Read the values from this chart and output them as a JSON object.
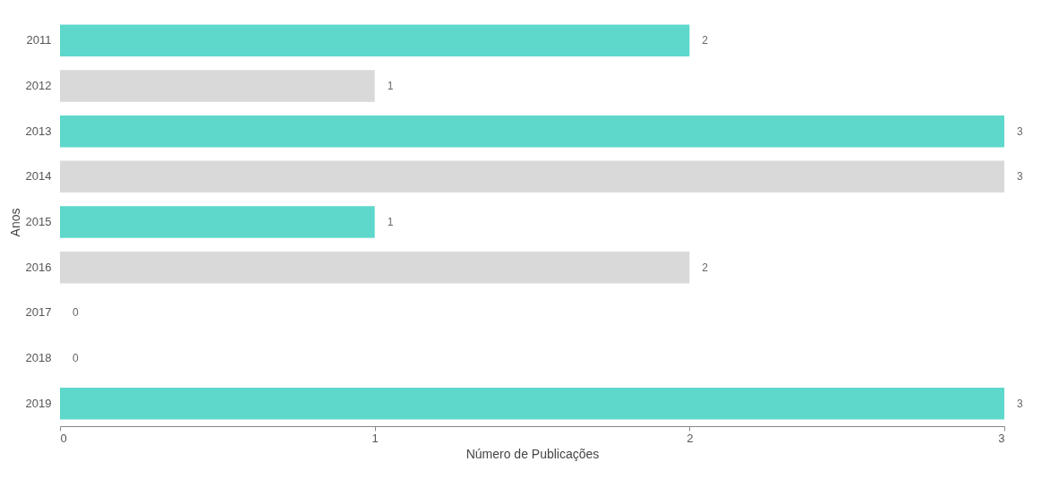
{
  "chart_data": {
    "type": "bar",
    "orientation": "horizontal",
    "xlabel": "Número de Publicações",
    "ylabel": "Anos",
    "categories": [
      "2011",
      "2012",
      "2013",
      "2014",
      "2015",
      "2016",
      "2017",
      "2018",
      "2019"
    ],
    "values": [
      2,
      1,
      3,
      3,
      1,
      2,
      0,
      0,
      3
    ],
    "colors": [
      "#5fd8cc",
      "#d9d9d9",
      "#5fd8cc",
      "#d9d9d9",
      "#5fd8cc",
      "#d9d9d9",
      "#5fd8cc",
      "#d9d9d9",
      "#5fd8cc"
    ],
    "xlim": [
      0,
      3
    ],
    "xticks": [
      0,
      1,
      2,
      3
    ],
    "data_labels": true,
    "grid": false
  }
}
